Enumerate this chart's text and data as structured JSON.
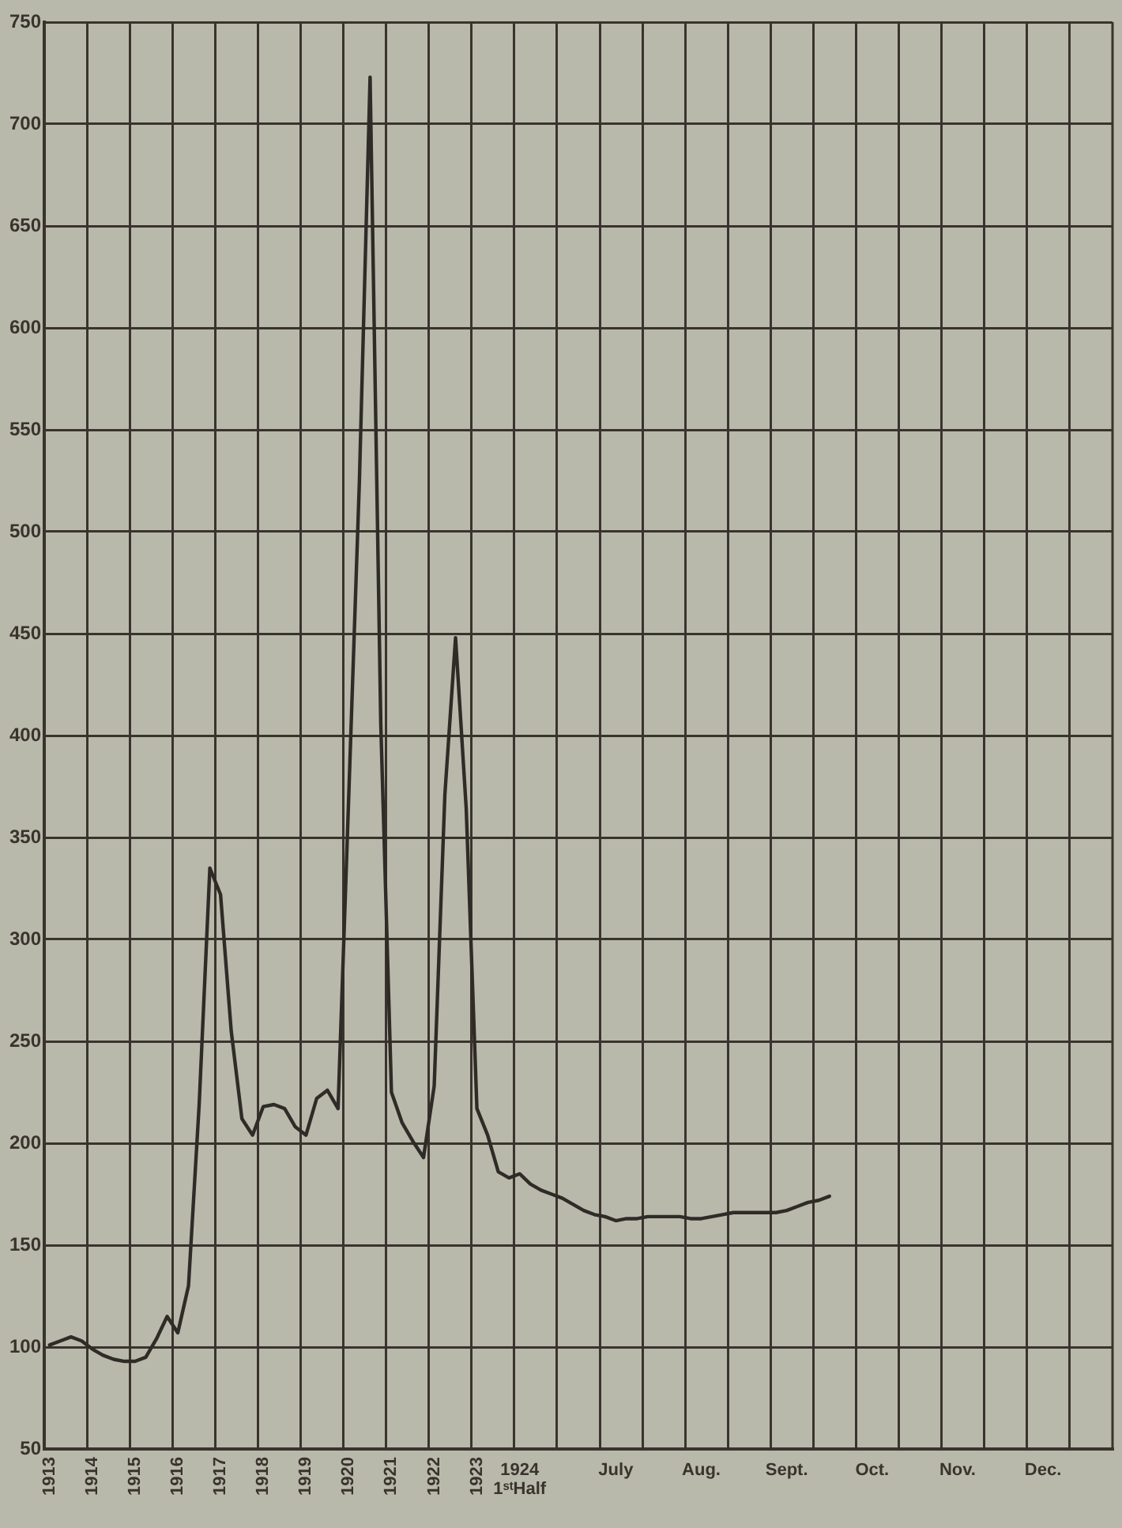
{
  "chart_data": {
    "type": "line",
    "categories": [
      "1913",
      null,
      null,
      null,
      "1914",
      null,
      null,
      null,
      "1915",
      null,
      null,
      null,
      "1916",
      null,
      null,
      null,
      "1917",
      null,
      null,
      null,
      "1918",
      null,
      null,
      null,
      "1919",
      null,
      null,
      null,
      "1920",
      null,
      null,
      null,
      "1921",
      null,
      null,
      null,
      "1922",
      null,
      null,
      null,
      "1923",
      null,
      null,
      null,
      "1924\n1ˢᵗHalf",
      null,
      null,
      null,
      null,
      null,
      null,
      null,
      null,
      "July",
      null,
      null,
      null,
      null,
      null,
      null,
      null,
      "Aug.",
      null,
      null,
      null,
      null,
      null,
      null,
      null,
      "Sept.",
      null,
      null,
      null,
      null,
      null,
      null,
      null,
      "Oct.",
      null,
      null,
      null,
      null,
      null,
      null,
      null,
      "Nov.",
      null,
      null,
      null,
      null,
      null,
      null,
      null,
      "Dec.",
      null,
      null,
      null,
      null,
      null,
      null
    ],
    "series": [
      {
        "color": "#2f2b27",
        "values": [
          101,
          103,
          105,
          103,
          99,
          96,
          94,
          93,
          93,
          95,
          104,
          115,
          107,
          130,
          219,
          335,
          322,
          255,
          212,
          204,
          218,
          219,
          217,
          208,
          204,
          222,
          226,
          217,
          370,
          525,
          723,
          406,
          225,
          210,
          201,
          193,
          228,
          371,
          448,
          364,
          217,
          204,
          186,
          183,
          185,
          180,
          177,
          175,
          173,
          170,
          167,
          165,
          164,
          162,
          163,
          163,
          164,
          164,
          164,
          164,
          163,
          163,
          164,
          165,
          166,
          166,
          166,
          166,
          166,
          167,
          169,
          171,
          172,
          174,
          null,
          null,
          null,
          null,
          null,
          null,
          null,
          null,
          null,
          null,
          null,
          null,
          null,
          null,
          null,
          null,
          null,
          null,
          null,
          null,
          null,
          null,
          null,
          null,
          null,
          null
        ]
      }
    ],
    "ylim": [
      50,
      750
    ],
    "yticks": [
      50,
      100,
      150,
      200,
      250,
      300,
      350,
      400,
      450,
      500,
      550,
      600,
      650,
      700,
      750
    ],
    "grid": true,
    "marker": "none",
    "line_style": "solid"
  }
}
